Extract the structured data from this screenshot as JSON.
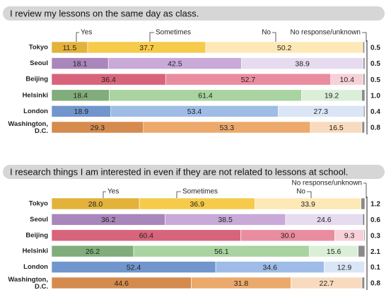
{
  "chart_data": [
    {
      "type": "bar",
      "stacked": true,
      "orientation": "horizontal",
      "title": "I review my lessons on the same day as class.",
      "categories": [
        "Tokyo",
        "Seoul",
        "Beijing",
        "Helsinki",
        "London",
        "Washington, D.C."
      ],
      "xlim": [
        0,
        100
      ],
      "series": [
        {
          "name": "Yes",
          "colors": [
            "#e2b23a",
            "#a986bb",
            "#d8647c",
            "#80ad7b",
            "#7096cd",
            "#d58b4d"
          ],
          "values": [
            11.5,
            18.1,
            36.4,
            18.4,
            18.9,
            29.3
          ]
        },
        {
          "name": "Sometimes",
          "colors": [
            "#f6ca4a",
            "#c8a9d8",
            "#ea8c9f",
            "#a9d3a0",
            "#9ebce6",
            "#eca96c"
          ],
          "values": [
            37.7,
            42.5,
            52.7,
            61.4,
            53.4,
            53.3
          ]
        },
        {
          "name": "No",
          "colors": [
            "#fde8b6",
            "#e6dbef",
            "#f7d0d8",
            "#dbeed7",
            "#dae5f5",
            "#f8dbbf"
          ],
          "values": [
            50.2,
            38.9,
            10.4,
            19.2,
            27.3,
            16.5
          ]
        },
        {
          "name": "No response/unknown",
          "colors": [
            "#8a8a8a",
            "#8a8a8a",
            "#8a8a8a",
            "#8a8a8a",
            "#8a8a8a",
            "#8a8a8a"
          ],
          "values": [
            0.5,
            0.5,
            0.5,
            1.0,
            0.4,
            0.8
          ],
          "value_labels": [
            "0.5",
            "0.5",
            "0.5",
            "1.0",
            "0.4",
            "0.8"
          ]
        }
      ]
    },
    {
      "type": "bar",
      "stacked": true,
      "orientation": "horizontal",
      "title": "I research things I am interested in even if they are not related to lessons at school.",
      "categories": [
        "Tokyo",
        "Seoul",
        "Beijing",
        "Helsinki",
        "London",
        "Washington, D.C."
      ],
      "xlim": [
        0,
        100
      ],
      "series": [
        {
          "name": "Yes",
          "colors": [
            "#e2b23a",
            "#a986bb",
            "#d8647c",
            "#80ad7b",
            "#7096cd",
            "#d58b4d"
          ],
          "values": [
            28.0,
            36.2,
            60.4,
            26.2,
            52.4,
            44.6
          ],
          "value_labels": [
            "28.0",
            "36.2",
            "60.4",
            "26.2",
            "52.4",
            "44.6"
          ]
        },
        {
          "name": "Sometimes",
          "colors": [
            "#f6ca4a",
            "#c8a9d8",
            "#ea8c9f",
            "#a9d3a0",
            "#9ebce6",
            "#eca96c"
          ],
          "values": [
            36.9,
            38.5,
            30.0,
            56.1,
            34.6,
            31.8
          ],
          "value_labels": [
            "36.9",
            "38.5",
            "30.0",
            "56.1",
            "34.6",
            "31.8"
          ]
        },
        {
          "name": "No",
          "colors": [
            "#fde8b6",
            "#e6dbef",
            "#f7d0d8",
            "#dbeed7",
            "#dae5f5",
            "#f8dbbf"
          ],
          "values": [
            33.9,
            24.6,
            9.3,
            15.6,
            12.9,
            22.7
          ]
        },
        {
          "name": "No response/unknown",
          "colors": [
            "#8a8a8a",
            "#8a8a8a",
            "#8a8a8a",
            "#8a8a8a",
            "#8a8a8a",
            "#8a8a8a"
          ],
          "values": [
            1.2,
            0.6,
            0.3,
            2.1,
            0.1,
            0.8
          ]
        }
      ]
    }
  ]
}
